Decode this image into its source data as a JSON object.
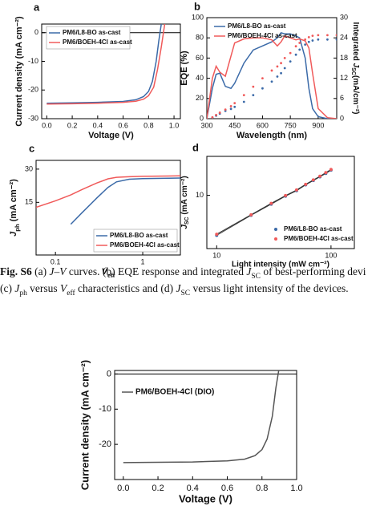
{
  "chart_data": [
    {
      "type": "line",
      "panel": "a",
      "xlabel": "Voltage (V)",
      "ylabel": "Current density (mA cm⁻²)",
      "xlim": [
        -0.04,
        1.05
      ],
      "ylim": [
        -30,
        3
      ],
      "xticks": [
        {
          "value": 0,
          "label": "0.0"
        },
        {
          "value": 0.2,
          "label": "0.2"
        },
        {
          "value": 0.4,
          "label": "0.4"
        },
        {
          "value": 0.6,
          "label": "0.6"
        },
        {
          "value": 0.8,
          "label": "0.8"
        },
        {
          "value": 1,
          "label": "1.0"
        }
      ],
      "yticks": [
        0,
        -10,
        -20,
        -30
      ],
      "zero_line": true,
      "legend": "upper left",
      "legend_box": true,
      "series": [
        {
          "name": "PM6/L8-BO as-cast",
          "color": "#3b6aa8",
          "x": [
            0,
            0.2,
            0.4,
            0.6,
            0.7,
            0.76,
            0.8,
            0.83,
            0.86,
            0.88,
            0.9
          ],
          "values": [
            -24.6,
            -24.5,
            -24.3,
            -24.0,
            -23.4,
            -22.3,
            -20.5,
            -17,
            -10,
            -3,
            3
          ]
        },
        {
          "name": "PM6/BOEH-4Cl as-cast",
          "color": "#f05a5a",
          "x": [
            0,
            0.2,
            0.4,
            0.6,
            0.7,
            0.76,
            0.8,
            0.84,
            0.87,
            0.9,
            0.92,
            0.93
          ],
          "values": [
            -24.9,
            -24.8,
            -24.6,
            -24.3,
            -23.9,
            -23.2,
            -22,
            -19,
            -13,
            -5,
            1,
            4
          ]
        }
      ]
    },
    {
      "type": "line",
      "panel": "b",
      "xlabel": "Wavelength (nm)",
      "ylabel": "EQE (%)",
      "y2label": [
        {
          "text": "Integrated "
        },
        {
          "text": "J",
          "italic": true
        },
        {
          "text": "SC",
          "sub": true
        },
        {
          "text": "(mA/cm⁻²)"
        }
      ],
      "xlim": [
        300,
        1000
      ],
      "ylim": [
        0,
        100
      ],
      "y2lim": [
        0,
        30
      ],
      "xticks": [
        300,
        450,
        600,
        750,
        900
      ],
      "yticks": [
        0,
        20,
        40,
        60,
        80,
        100
      ],
      "y2ticks": [
        0,
        6,
        12,
        18,
        24,
        30
      ],
      "legend": "upper left",
      "legend_box": false,
      "series": [
        {
          "name": "PM6/L8-BO as-cast",
          "color": "#3b6aa8",
          "x": [
            300,
            330,
            350,
            370,
            400,
            430,
            450,
            500,
            550,
            600,
            650,
            680,
            700,
            720,
            750,
            780,
            800,
            830,
            850,
            870,
            900,
            950,
            1000
          ],
          "values": [
            0,
            30,
            44,
            45,
            32,
            30,
            35,
            55,
            68,
            72,
            76,
            80,
            85,
            84,
            84,
            82,
            80,
            60,
            30,
            10,
            2,
            0,
            0
          ]
        },
        {
          "name": "PM6/BOEH-4Cl as-cast",
          "color": "#f05a5a",
          "x": [
            300,
            330,
            350,
            370,
            400,
            430,
            450,
            500,
            550,
            600,
            650,
            680,
            700,
            720,
            750,
            780,
            800,
            830,
            850,
            870,
            900,
            950,
            1000
          ],
          "values": [
            0,
            40,
            52,
            46,
            42,
            62,
            75,
            79,
            80,
            80,
            78,
            72,
            76,
            82,
            80,
            78,
            79,
            77,
            70,
            45,
            10,
            1,
            0
          ]
        },
        {
          "color": "#3b6aa8",
          "axis": "y2",
          "dots": true,
          "x": [
            300,
            330,
            350,
            370,
            400,
            430,
            450,
            500,
            550,
            600,
            650,
            680,
            700,
            720,
            750,
            780,
            800,
            830,
            850,
            870,
            900,
            950,
            1000
          ],
          "values": [
            0,
            0.3,
            0.9,
            1.5,
            2.3,
            2.9,
            3.5,
            5,
            7,
            9,
            11,
            12.5,
            13.5,
            15,
            17,
            19,
            20.5,
            22,
            22.8,
            23.2,
            23.5,
            23.5,
            23.5
          ]
        },
        {
          "color": "#f05a5a",
          "axis": "y2",
          "dots": true,
          "x": [
            300,
            330,
            350,
            370,
            400,
            430,
            450,
            500,
            550,
            600,
            650,
            680,
            700,
            720,
            750,
            780,
            800,
            830,
            850,
            870,
            900,
            950,
            1000
          ],
          "values": [
            0,
            0.4,
            1.1,
            1.8,
            2.7,
            3.7,
            4.6,
            7,
            9.5,
            12,
            14.3,
            15.5,
            16.5,
            18,
            19.5,
            21.5,
            22.5,
            23.5,
            24.2,
            24.6,
            24.8,
            24.8,
            24.8
          ]
        }
      ]
    },
    {
      "type": "line",
      "panel": "c",
      "xlabel": [
        {
          "text": "V",
          "italic": true
        },
        {
          "text": "eff",
          "sub": true
        }
      ],
      "ylabel": [
        {
          "text": "J",
          "italic": true
        },
        {
          "text": "ph",
          "sub": true
        },
        {
          "text": " (mA cm⁻²)"
        }
      ],
      "xlog": true,
      "ylog": true,
      "xlim": [
        0.06,
        2.7
      ],
      "ylim": [
        5,
        36
      ],
      "xticks": [
        0.1,
        1
      ],
      "yticks": [
        15,
        30
      ],
      "legend": "lower right",
      "legend_box": true,
      "series": [
        {
          "name": "PM6/L8-BO as-cast",
          "color": "#3b6aa8",
          "x": [
            0.15,
            0.2,
            0.3,
            0.4,
            0.5,
            0.7,
            1,
            2,
            2.7
          ],
          "values": [
            9.5,
            12,
            16.5,
            20.5,
            23,
            24.3,
            24.6,
            24.8,
            24.9
          ]
        },
        {
          "name": "PM6/BOEH-4Cl as-cast",
          "color": "#f05a5a",
          "x": [
            0.06,
            0.1,
            0.15,
            0.2,
            0.3,
            0.4,
            0.5,
            0.7,
            1,
            2,
            2.7
          ],
          "values": [
            13.5,
            15.5,
            17.5,
            19.5,
            22.5,
            24.5,
            25.3,
            25.6,
            25.8,
            26,
            26.1
          ]
        }
      ]
    },
    {
      "type": "scatter",
      "panel": "d",
      "xlabel": "Light intensity (mW cm⁻²)",
      "ylabel": [
        {
          "text": "J",
          "italic": true
        },
        {
          "text": "SC",
          "sub": true
        },
        {
          "text": " (mA cm⁻²)"
        }
      ],
      "xlog": true,
      "ylog": true,
      "xlim": [
        8.2,
        160
      ],
      "ylim": [
        1.5,
        40
      ],
      "xticks": [
        10,
        100
      ],
      "yticks": [
        10
      ],
      "legend": "lower right",
      "legend_box": false,
      "series": [
        {
          "name": "PM6/L8-BO as-cast",
          "color": "#3b6aa8",
          "x": [
            10,
            20,
            30,
            40,
            50,
            60,
            70,
            80,
            90,
            100
          ],
          "values": [
            2.4,
            4.9,
            7.3,
            9.7,
            11.8,
            14.5,
            16.9,
            19.3,
            21.8,
            24.5
          ]
        },
        {
          "name": "PM6/BOEH-4Cl as-cast",
          "color": "#f05a5a",
          "x": [
            10,
            20,
            30,
            40,
            50,
            60,
            70,
            80,
            90,
            100
          ],
          "values": [
            2.5,
            5.0,
            7.5,
            9.9,
            12.1,
            14.8,
            17.3,
            19.7,
            22.4,
            25.1
          ]
        }
      ]
    },
    {
      "type": "line",
      "xlabel": "Voltage (V)",
      "ylabel": "Current density (mA cm⁻²)",
      "xlim": [
        -0.05,
        1.0
      ],
      "ylim": [
        -30,
        1
      ],
      "xticks": [
        {
          "value": 0,
          "label": "0.0"
        },
        {
          "value": 0.2,
          "label": "0.2"
        },
        {
          "value": 0.4,
          "label": "0.4"
        },
        {
          "value": 0.6,
          "label": "0.6"
        },
        {
          "value": 0.8,
          "label": "0.8"
        },
        {
          "value": 1,
          "label": "1.0"
        }
      ],
      "yticks": [
        0,
        -10,
        -20
      ],
      "zero_line": true,
      "legend": "upper left",
      "legend_box": false,
      "series": [
        {
          "name": "PM6/BOEH-4Cl (DIO)",
          "color": "#555555",
          "x": [
            0,
            0.2,
            0.4,
            0.6,
            0.7,
            0.76,
            0.8,
            0.83,
            0.86,
            0.88,
            0.9
          ],
          "values": [
            -25.2,
            -25.1,
            -25.0,
            -24.7,
            -24.2,
            -23.2,
            -21.5,
            -18.5,
            -12,
            -4,
            2
          ]
        }
      ]
    }
  ],
  "caption": [
    [
      {
        "text": "Fig. S6",
        "bold": true
      },
      {
        "text": " (a) "
      },
      {
        "text": "J–V",
        "italic": true
      },
      {
        "text": " curves. (b) EQE response and integrated "
      },
      {
        "text": "J",
        "italic": true
      },
      {
        "text": "SC",
        "sub": true
      },
      {
        "text": " of best-performing devi"
      }
    ],
    [
      {
        "text": "(c) "
      },
      {
        "text": "J",
        "italic": true
      },
      {
        "text": "ph",
        "sub": true
      },
      {
        "text": " versus "
      },
      {
        "text": "V",
        "italic": true
      },
      {
        "text": "eff",
        "sub": true
      },
      {
        "text": " characteristics and (d) "
      },
      {
        "text": "J",
        "italic": true
      },
      {
        "text": "SC",
        "sub": true
      },
      {
        "text": " versus light intensity of the devices."
      }
    ]
  ]
}
